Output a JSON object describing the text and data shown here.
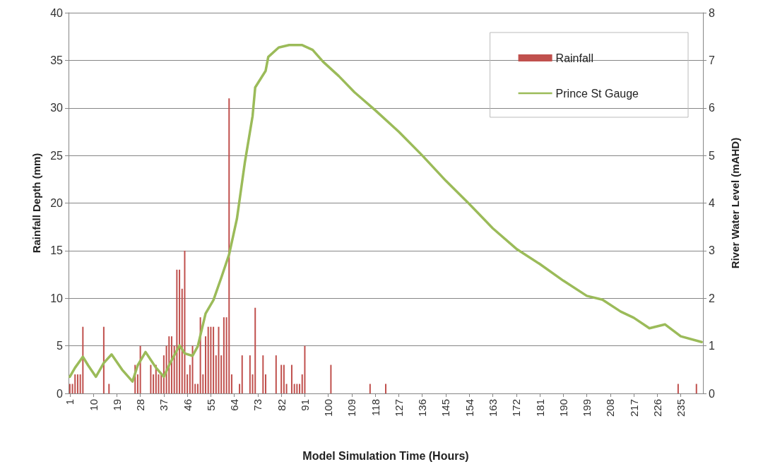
{
  "chart_data": {
    "type": "bar",
    "xlabel": "Model Simulation Time (Hours)",
    "ylabel": "Rainfall Depth (mm)",
    "y2label": "River Water Level (mAHD)",
    "xlim": [
      0.5,
      243.5
    ],
    "xticks": [
      1,
      10,
      19,
      28,
      37,
      46,
      55,
      64,
      73,
      82,
      91,
      100,
      109,
      118,
      127,
      136,
      145,
      154,
      163,
      172,
      181,
      190,
      199,
      208,
      217,
      226,
      235
    ],
    "ylim": [
      0,
      40
    ],
    "yticks": [
      0,
      5,
      10,
      15,
      20,
      25,
      30,
      35,
      40
    ],
    "y2lim": [
      0,
      8
    ],
    "y2ticks": [
      0,
      1,
      2,
      3,
      4,
      5,
      6,
      7,
      8
    ],
    "grid": "y",
    "legend": "top right",
    "series": [
      {
        "name": "Rainfall",
        "color": "#c0504d",
        "x": [
          1,
          2,
          3,
          4,
          5,
          6,
          14,
          16,
          26,
          27,
          28,
          32,
          33,
          34,
          35,
          36,
          37,
          38,
          39,
          40,
          41,
          42,
          43,
          44,
          45,
          46,
          47,
          48,
          49,
          50,
          51,
          52,
          53,
          54,
          55,
          56,
          57,
          58,
          59,
          60,
          61,
          62,
          63,
          66,
          67,
          70,
          71,
          72,
          75,
          76,
          80,
          82,
          83,
          84,
          86,
          87,
          88,
          89,
          90,
          91,
          101,
          116,
          122,
          234,
          241
        ],
        "values": [
          1,
          1,
          2,
          2,
          2,
          7,
          7,
          1,
          3,
          2,
          5,
          3,
          2,
          3,
          2,
          2,
          4,
          5,
          6,
          6,
          5,
          13,
          13,
          11,
          15,
          2,
          3,
          5,
          1,
          1,
          8,
          2,
          6,
          7,
          7,
          7,
          4,
          7,
          4,
          8,
          8,
          31,
          2,
          1,
          4,
          4,
          2,
          9,
          4,
          2,
          4,
          3,
          3,
          1,
          3,
          1,
          1,
          1,
          2,
          5,
          3,
          1,
          1,
          1,
          1
        ]
      },
      {
        "name": "Prince St Gauge",
        "type": "line",
        "axis": "y2",
        "color": "#9bbb59",
        "x": [
          1,
          3,
          6,
          8,
          11,
          14,
          17,
          21,
          25,
          27,
          30,
          34,
          37,
          39,
          43,
          45,
          48,
          50,
          53,
          56,
          59,
          62,
          65,
          68,
          71,
          72,
          76,
          77,
          81,
          85,
          90,
          94,
          98,
          104,
          110,
          118,
          127,
          136,
          145,
          154,
          163,
          172,
          181,
          190,
          199,
          205,
          212,
          217,
          223,
          229,
          235,
          243
        ],
        "values": [
          0.35,
          0.54,
          0.77,
          0.59,
          0.35,
          0.64,
          0.82,
          0.5,
          0.25,
          0.59,
          0.87,
          0.54,
          0.35,
          0.59,
          1.01,
          0.84,
          0.79,
          0.99,
          1.68,
          1.96,
          2.43,
          2.92,
          3.67,
          4.84,
          5.83,
          6.43,
          6.78,
          7.07,
          7.27,
          7.32,
          7.32,
          7.22,
          6.97,
          6.67,
          6.33,
          5.95,
          5.5,
          5.0,
          4.47,
          3.98,
          3.47,
          3.04,
          2.72,
          2.37,
          2.05,
          1.97,
          1.72,
          1.59,
          1.37,
          1.45,
          1.2,
          1.08
        ]
      }
    ]
  }
}
